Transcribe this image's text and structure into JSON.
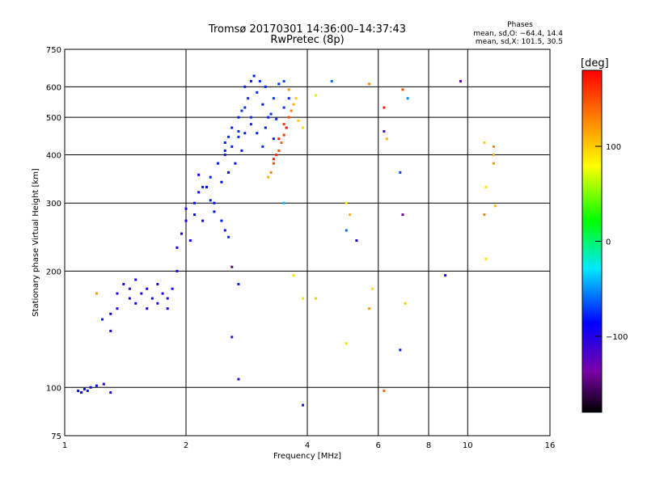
{
  "chart_data": {
    "type": "scatter",
    "title": "Tromsø 20170301 14:36:00–14:37:43",
    "subtitle": "RwPretec (8p)",
    "stats": {
      "heading": "Phases",
      "line1": "mean, sd,O: −64.4, 14.4",
      "line2": "mean, sd,X: 101.5, 30.5"
    },
    "xlabel": "Frequency [MHz]",
    "ylabel": "Stationary phase Virtual Height [km]",
    "x_scale": "log2",
    "y_scale": "log",
    "xlim": [
      1,
      16
    ],
    "ylim": [
      75,
      750
    ],
    "x_ticks": [
      1,
      2,
      4,
      6,
      8,
      10,
      16
    ],
    "x_tick_labels": [
      "1",
      "2",
      "4",
      "6",
      "8",
      "10",
      "16"
    ],
    "x_grid": [
      2,
      4,
      6,
      8,
      10
    ],
    "y_ticks": [
      75,
      100,
      200,
      300,
      400,
      500,
      600,
      750
    ],
    "y_tick_labels": [
      "75",
      "100",
      "200",
      "300",
      "400",
      "500",
      "600",
      "750"
    ],
    "y_grid": [
      100,
      200,
      300,
      400,
      500,
      600
    ],
    "grid": true,
    "colorbar": {
      "label": "[deg]",
      "range": [
        -180,
        180
      ],
      "ticks": [
        100,
        0,
        -100
      ],
      "tick_labels": [
        "100",
        "0",
        "−100"
      ]
    },
    "series": [
      {
        "points": [
          [
            1.08,
            98,
            -90
          ],
          [
            1.1,
            97,
            -90
          ],
          [
            1.12,
            99,
            -85
          ],
          [
            1.14,
            98,
            -80
          ],
          [
            1.16,
            100,
            -90
          ],
          [
            1.2,
            101,
            -80
          ],
          [
            1.25,
            102,
            -95
          ],
          [
            1.3,
            97,
            -100
          ],
          [
            1.24,
            150,
            -80
          ],
          [
            1.3,
            155,
            -85
          ],
          [
            1.3,
            140,
            -95
          ],
          [
            1.35,
            160,
            -100
          ],
          [
            1.35,
            175,
            -100
          ],
          [
            1.4,
            185,
            -105
          ],
          [
            1.45,
            180,
            -100
          ],
          [
            1.45,
            170,
            -95
          ],
          [
            1.5,
            165,
            -100
          ],
          [
            1.5,
            190,
            -105
          ],
          [
            1.55,
            175,
            -100
          ],
          [
            1.6,
            160,
            -95
          ],
          [
            1.6,
            180,
            -100
          ],
          [
            1.65,
            170,
            -95
          ],
          [
            1.7,
            165,
            -100
          ],
          [
            1.7,
            185,
            -105
          ],
          [
            1.75,
            175,
            -100
          ],
          [
            1.8,
            160,
            -95
          ],
          [
            1.8,
            170,
            -100
          ],
          [
            1.85,
            180,
            -95
          ],
          [
            1.9,
            200,
            -95
          ],
          [
            1.9,
            230,
            -90
          ],
          [
            1.95,
            250,
            -95
          ],
          [
            2.0,
            270,
            -90
          ],
          [
            2.0,
            290,
            -95
          ],
          [
            2.05,
            240,
            -90
          ],
          [
            2.1,
            280,
            -85
          ],
          [
            2.1,
            300,
            -90
          ],
          [
            2.15,
            320,
            -85
          ],
          [
            2.2,
            270,
            -90
          ],
          [
            2.25,
            330,
            -85
          ],
          [
            2.3,
            350,
            -80
          ],
          [
            2.35,
            300,
            -85
          ],
          [
            2.4,
            380,
            -80
          ],
          [
            2.45,
            340,
            -85
          ],
          [
            2.5,
            400,
            -80
          ],
          [
            2.5,
            430,
            -80
          ],
          [
            2.55,
            360,
            -85
          ],
          [
            2.6,
            420,
            -80
          ],
          [
            2.65,
            380,
            -80
          ],
          [
            2.7,
            460,
            -75
          ],
          [
            2.7,
            500,
            -80
          ],
          [
            2.75,
            410,
            -80
          ],
          [
            2.8,
            530,
            -75
          ],
          [
            2.8,
            600,
            -80
          ],
          [
            2.85,
            560,
            -75
          ],
          [
            2.9,
            620,
            -80
          ],
          [
            2.9,
            480,
            -75
          ],
          [
            2.95,
            640,
            -80
          ],
          [
            3.0,
            580,
            -75
          ],
          [
            3.05,
            620,
            -75
          ],
          [
            3.1,
            540,
            -80
          ],
          [
            3.15,
            600,
            -75
          ],
          [
            3.2,
            500,
            -80
          ],
          [
            3.3,
            560,
            -70
          ],
          [
            3.4,
            610,
            -75
          ],
          [
            3.5,
            620,
            -70
          ]
        ]
      },
      {
        "points": [
          [
            2.15,
            355,
            -85
          ],
          [
            2.2,
            330,
            -80
          ],
          [
            2.3,
            305,
            -80
          ],
          [
            2.35,
            285,
            -85
          ],
          [
            2.45,
            270,
            -80
          ],
          [
            2.5,
            255,
            -80
          ],
          [
            2.55,
            245,
            -75
          ],
          [
            2.5,
            410,
            -80
          ],
          [
            2.55,
            445,
            -75
          ],
          [
            2.6,
            470,
            -80
          ],
          [
            2.7,
            445,
            -75
          ],
          [
            2.75,
            520,
            -75
          ],
          [
            2.8,
            455,
            -80
          ],
          [
            2.9,
            500,
            -75
          ],
          [
            3.0,
            455,
            -80
          ],
          [
            3.1,
            420,
            -75
          ],
          [
            3.15,
            470,
            -80
          ],
          [
            3.25,
            510,
            -75
          ],
          [
            3.3,
            440,
            -80
          ],
          [
            3.35,
            495,
            -75
          ],
          [
            3.45,
            430,
            -70
          ],
          [
            3.5,
            530,
            -75
          ],
          [
            3.55,
            470,
            -70
          ],
          [
            3.6,
            560,
            -75
          ]
        ]
      },
      {
        "points": [
          [
            3.2,
            350,
            110
          ],
          [
            3.25,
            360,
            130
          ],
          [
            3.3,
            380,
            150
          ],
          [
            3.35,
            400,
            160
          ],
          [
            3.4,
            410,
            150
          ],
          [
            3.45,
            430,
            140
          ],
          [
            3.5,
            450,
            160
          ],
          [
            3.55,
            470,
            170
          ],
          [
            3.6,
            500,
            150
          ],
          [
            3.65,
            520,
            130
          ],
          [
            3.7,
            540,
            110
          ],
          [
            3.75,
            560,
            100
          ],
          [
            3.8,
            490,
            100
          ],
          [
            3.9,
            470,
            90
          ],
          [
            3.3,
            390,
            170
          ],
          [
            3.4,
            440,
            170
          ],
          [
            3.5,
            480,
            160
          ],
          [
            3.6,
            590,
            120
          ]
        ]
      },
      {
        "points": [
          [
            1.2,
            175,
            120
          ],
          [
            2.6,
            205,
            -150
          ],
          [
            2.6,
            135,
            -110
          ],
          [
            2.7,
            105,
            -100
          ],
          [
            2.7,
            185,
            -80
          ],
          [
            3.5,
            300,
            -40
          ],
          [
            3.7,
            195,
            90
          ],
          [
            3.9,
            90,
            -80
          ],
          [
            3.9,
            170,
            90
          ],
          [
            4.2,
            570,
            70
          ],
          [
            4.2,
            170,
            100
          ],
          [
            4.6,
            620,
            -60
          ],
          [
            5.0,
            255,
            -60
          ],
          [
            5.0,
            130,
            90
          ],
          [
            5.0,
            300,
            90
          ],
          [
            5.1,
            280,
            110
          ],
          [
            5.3,
            240,
            -90
          ],
          [
            5.7,
            610,
            130
          ],
          [
            5.7,
            160,
            120
          ],
          [
            5.8,
            180,
            90
          ],
          [
            6.2,
            530,
            170
          ],
          [
            6.2,
            460,
            -120
          ],
          [
            6.3,
            440,
            110
          ],
          [
            6.2,
            98,
            140
          ],
          [
            6.8,
            360,
            -70
          ],
          [
            6.8,
            125,
            -80
          ],
          [
            6.9,
            280,
            -140
          ],
          [
            6.9,
            590,
            150
          ],
          [
            7.0,
            165,
            100
          ],
          [
            7.1,
            560,
            -50
          ],
          [
            8.8,
            195,
            -90
          ],
          [
            9.6,
            620,
            -130
          ],
          [
            11.0,
            430,
            100
          ],
          [
            11.1,
            330,
            90
          ],
          [
            11.0,
            280,
            130
          ],
          [
            11.1,
            215,
            90
          ],
          [
            11.6,
            420,
            130
          ],
          [
            11.6,
            380,
            120
          ],
          [
            11.7,
            295,
            110
          ],
          [
            11.6,
            400,
            110
          ]
        ]
      }
    ]
  }
}
